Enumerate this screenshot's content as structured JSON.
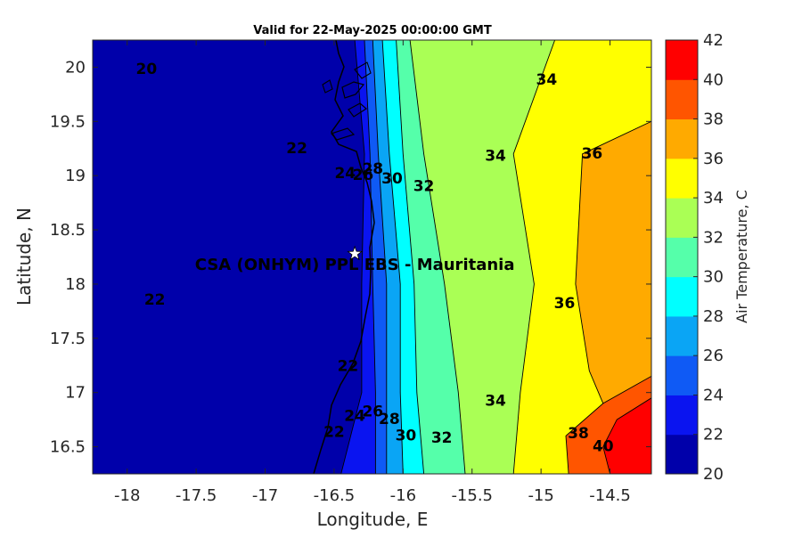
{
  "chart_data": {
    "type": "heatmap",
    "title": "Valid for 22-May-2025 00:00:00 GMT",
    "xlabel": "Longitude, E",
    "ylabel": "Latitude, N",
    "xlim": [
      -18.25,
      -14.2
    ],
    "ylim": [
      16.25,
      20.25
    ],
    "x_ticks": [
      -18,
      -17.5,
      -17,
      -16.5,
      -16,
      -15.5,
      -15,
      -14.5
    ],
    "x_tick_labels": [
      "-18",
      "-17.5",
      "-17",
      "-16.5",
      "-16",
      "-15.5",
      "-15",
      "-14.5"
    ],
    "y_ticks": [
      16.5,
      17,
      17.5,
      18,
      18.5,
      19,
      19.5,
      20
    ],
    "y_tick_labels": [
      "16.5",
      "17",
      "17.5",
      "18",
      "18.5",
      "19",
      "19.5",
      "20"
    ],
    "grid": false,
    "colorbar": {
      "label": "Air Temperature, C",
      "ticks": [
        20,
        22,
        24,
        26,
        28,
        30,
        32,
        34,
        36,
        38,
        40,
        42
      ],
      "tick_labels": [
        "20",
        "22",
        "24",
        "26",
        "28",
        "30",
        "32",
        "34",
        "36",
        "38",
        "40",
        "42"
      ],
      "colors": [
        "#0000aa",
        "#0a14f0",
        "#0f5af5",
        "#0aa5f5",
        "#00ffff",
        "#55ffaa",
        "#aaff55",
        "#ffff00",
        "#ffaa00",
        "#ff5500",
        "#ff0000",
        "#aa0000"
      ]
    },
    "isotherms": [
      {
        "value": 22,
        "x": [
          -16.35,
          -16.28,
          -16.3,
          -16.3,
          -16.45
        ],
        "y": [
          20.25,
          19.2,
          18.0,
          17.0,
          16.25
        ]
      },
      {
        "value": 24,
        "x": [
          -16.28,
          -16.24,
          -16.22,
          -16.2,
          -16.2
        ],
        "y": [
          20.25,
          19.2,
          18.0,
          17.0,
          16.25
        ]
      },
      {
        "value": 26,
        "x": [
          -16.22,
          -16.18,
          -16.12,
          -16.12,
          -16.12
        ],
        "y": [
          20.25,
          19.2,
          18.0,
          17.0,
          16.25
        ]
      },
      {
        "value": 28,
        "x": [
          -16.15,
          -16.1,
          -16.02,
          -16.02,
          -16.0
        ],
        "y": [
          20.25,
          19.2,
          18.0,
          17.0,
          16.25
        ]
      },
      {
        "value": 30,
        "x": [
          -16.05,
          -16.0,
          -15.92,
          -15.9,
          -15.85
        ],
        "y": [
          20.25,
          19.2,
          18.0,
          17.0,
          16.25
        ]
      },
      {
        "value": 32,
        "x": [
          -15.95,
          -15.85,
          -15.7,
          -15.6,
          -15.55
        ],
        "y": [
          20.25,
          19.2,
          18.0,
          17.0,
          16.25
        ]
      },
      {
        "value": 34,
        "x": [
          -14.9,
          -15.2,
          -15.05,
          -15.15,
          -15.2
        ],
        "y": [
          20.25,
          19.2,
          18.0,
          17.0,
          16.25
        ]
      },
      {
        "value": 36,
        "x": [
          -14.2,
          -14.7,
          -14.75,
          -14.65,
          -14.55
        ],
        "y": [
          19.5,
          19.2,
          18.0,
          17.2,
          16.9
        ]
      },
      {
        "value": 38,
        "x": [
          -14.2,
          -14.55,
          -14.82,
          -14.8
        ],
        "y": [
          17.15,
          16.9,
          16.6,
          16.25
        ]
      },
      {
        "value": 40,
        "x": [
          -14.2,
          -14.45,
          -14.55,
          -14.5
        ],
        "y": [
          16.95,
          16.75,
          16.5,
          16.25
        ]
      }
    ],
    "contour_labels": [
      {
        "text": "20",
        "lon": -17.86,
        "lat": 19.98
      },
      {
        "text": "22",
        "lon": -16.77,
        "lat": 19.25
      },
      {
        "text": "22",
        "lon": -17.8,
        "lat": 17.85
      },
      {
        "text": "22",
        "lon": -16.4,
        "lat": 17.24
      },
      {
        "text": "22",
        "lon": -16.5,
        "lat": 16.63
      },
      {
        "text": "24",
        "lon": -16.42,
        "lat": 19.02
      },
      {
        "text": "24",
        "lon": -16.35,
        "lat": 16.78
      },
      {
        "text": "26",
        "lon": -16.29,
        "lat": 19.0
      },
      {
        "text": "26",
        "lon": -16.22,
        "lat": 16.82
      },
      {
        "text": "28",
        "lon": -16.22,
        "lat": 19.06
      },
      {
        "text": "28",
        "lon": -16.1,
        "lat": 16.75
      },
      {
        "text": "30",
        "lon": -16.08,
        "lat": 18.97
      },
      {
        "text": "30",
        "lon": -15.98,
        "lat": 16.6
      },
      {
        "text": "32",
        "lon": -15.85,
        "lat": 18.9
      },
      {
        "text": "32",
        "lon": -15.72,
        "lat": 16.58
      },
      {
        "text": "34",
        "lon": -14.96,
        "lat": 19.88
      },
      {
        "text": "34",
        "lon": -15.33,
        "lat": 19.18
      },
      {
        "text": "34",
        "lon": -15.33,
        "lat": 16.92
      },
      {
        "text": "36",
        "lon": -14.63,
        "lat": 19.2
      },
      {
        "text": "36",
        "lon": -14.83,
        "lat": 17.82
      },
      {
        "text": "38",
        "lon": -14.73,
        "lat": 16.62
      },
      {
        "text": "40",
        "lon": -14.55,
        "lat": 16.5
      }
    ],
    "annotations": [
      {
        "text": "CSA (ONHYM) PPL EBS  - Mauritania",
        "lon": -16.35,
        "lat": 18.17
      }
    ],
    "marker": {
      "lon": -16.35,
      "lat": 18.28,
      "symbol": "star"
    }
  }
}
